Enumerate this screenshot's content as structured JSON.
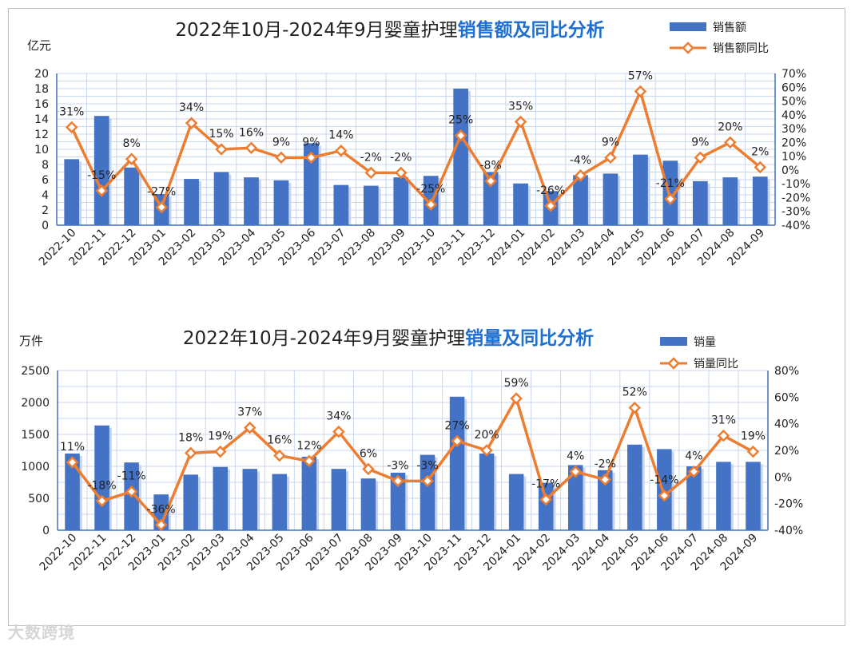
{
  "colors": {
    "bar": "#4472c4",
    "line": "#ed7d31",
    "title_highlight": "#1f6fd1",
    "grid": "#c9d7ee"
  },
  "chart_data": [
    {
      "type": "bar+line",
      "title": "2022年10月-2024年9月婴童护理",
      "title_highlight": "销售额及同比分析",
      "ylabel": "亿元",
      "ylim": [
        0,
        20
      ],
      "yticks": [
        0,
        2,
        4,
        6,
        8,
        10,
        12,
        14,
        16,
        18,
        20
      ],
      "y2lim": [
        -40,
        70
      ],
      "y2ticks": [
        "-40%",
        "-30%",
        "-20%",
        "-10%",
        "0%",
        "10%",
        "20%",
        "30%",
        "40%",
        "50%",
        "60%",
        "70%"
      ],
      "categories": [
        "2022-10",
        "2022-11",
        "2022-12",
        "2023-01",
        "2023-02",
        "2023-03",
        "2023-04",
        "2023-05",
        "2023-06",
        "2023-07",
        "2023-08",
        "2023-09",
        "2023-10",
        "2023-11",
        "2023-12",
        "2024-01",
        "2024-02",
        "2024-03",
        "2024-04",
        "2024-05",
        "2024-06",
        "2024-07",
        "2024-08",
        "2024-09"
      ],
      "series": [
        {
          "name": "销售额",
          "kind": "bar",
          "axis": "left",
          "values": [
            8.7,
            14.4,
            7.6,
            4.1,
            6.1,
            7.0,
            6.3,
            5.9,
            10.8,
            5.3,
            5.2,
            6.3,
            6.5,
            18.0,
            7.0,
            5.5,
            4.5,
            6.6,
            6.8,
            9.3,
            8.5,
            5.8,
            6.3,
            6.4
          ]
        },
        {
          "name": "销售额同比",
          "kind": "line",
          "axis": "right",
          "values": [
            31,
            -15,
            8,
            -27,
            34,
            15,
            16,
            9,
            9,
            14,
            -2,
            -2,
            -25,
            25,
            -8,
            35,
            -26,
            -4,
            9,
            57,
            -21,
            9,
            20,
            2
          ],
          "labels": [
            "31%",
            "-15%",
            "8%",
            "-27%",
            "34%",
            "15%",
            "16%",
            "9%",
            "9%",
            "14%",
            "-2%",
            "-2%",
            "-25%",
            "25%",
            "-8%",
            "35%",
            "-26%",
            "-4%",
            "9%",
            "57%",
            "-21%",
            "9%",
            "20%",
            "2%"
          ]
        }
      ]
    },
    {
      "type": "bar+line",
      "title": "2022年10月-2024年9月婴童护理",
      "title_highlight": "销量及同比分析",
      "ylabel": "万件",
      "ylim": [
        0,
        2500
      ],
      "yticks": [
        0,
        500,
        1000,
        1500,
        2000,
        2500
      ],
      "y2lim": [
        -40,
        80
      ],
      "y2ticks": [
        "-40%",
        "-20%",
        "0%",
        "20%",
        "40%",
        "60%",
        "80%"
      ],
      "categories": [
        "2022-10",
        "2022-11",
        "2022-12",
        "2023-01",
        "2023-02",
        "2023-03",
        "2023-04",
        "2023-05",
        "2023-06",
        "2023-07",
        "2023-08",
        "2023-09",
        "2023-10",
        "2023-11",
        "2023-12",
        "2024-01",
        "2024-02",
        "2024-03",
        "2024-04",
        "2024-05",
        "2024-06",
        "2024-07",
        "2024-08",
        "2024-09"
      ],
      "series": [
        {
          "name": "销量",
          "kind": "bar",
          "axis": "left",
          "values": [
            1200,
            1640,
            1060,
            560,
            870,
            990,
            960,
            880,
            1150,
            960,
            810,
            900,
            1180,
            2090,
            1200,
            880,
            740,
            1020,
            940,
            1340,
            1270,
            1000,
            1070,
            1070
          ]
        },
        {
          "name": "销量同比",
          "kind": "line",
          "axis": "right",
          "values": [
            11,
            -18,
            -11,
            -36,
            18,
            19,
            37,
            16,
            12,
            34,
            6,
            -3,
            -3,
            27,
            20,
            59,
            -17,
            4,
            -2,
            52,
            -14,
            4,
            31,
            19
          ],
          "labels": [
            "11%",
            "-18%",
            "-11%",
            "-36%",
            "18%",
            "19%",
            "37%",
            "16%",
            "12%",
            "34%",
            "6%",
            "-3%",
            "-3%",
            "27%",
            "20%",
            "59%",
            "-17%",
            "4%",
            "-2%",
            "52%",
            "-14%",
            "4%",
            "31%",
            "19%"
          ]
        }
      ]
    }
  ],
  "watermark": "大数跨境"
}
